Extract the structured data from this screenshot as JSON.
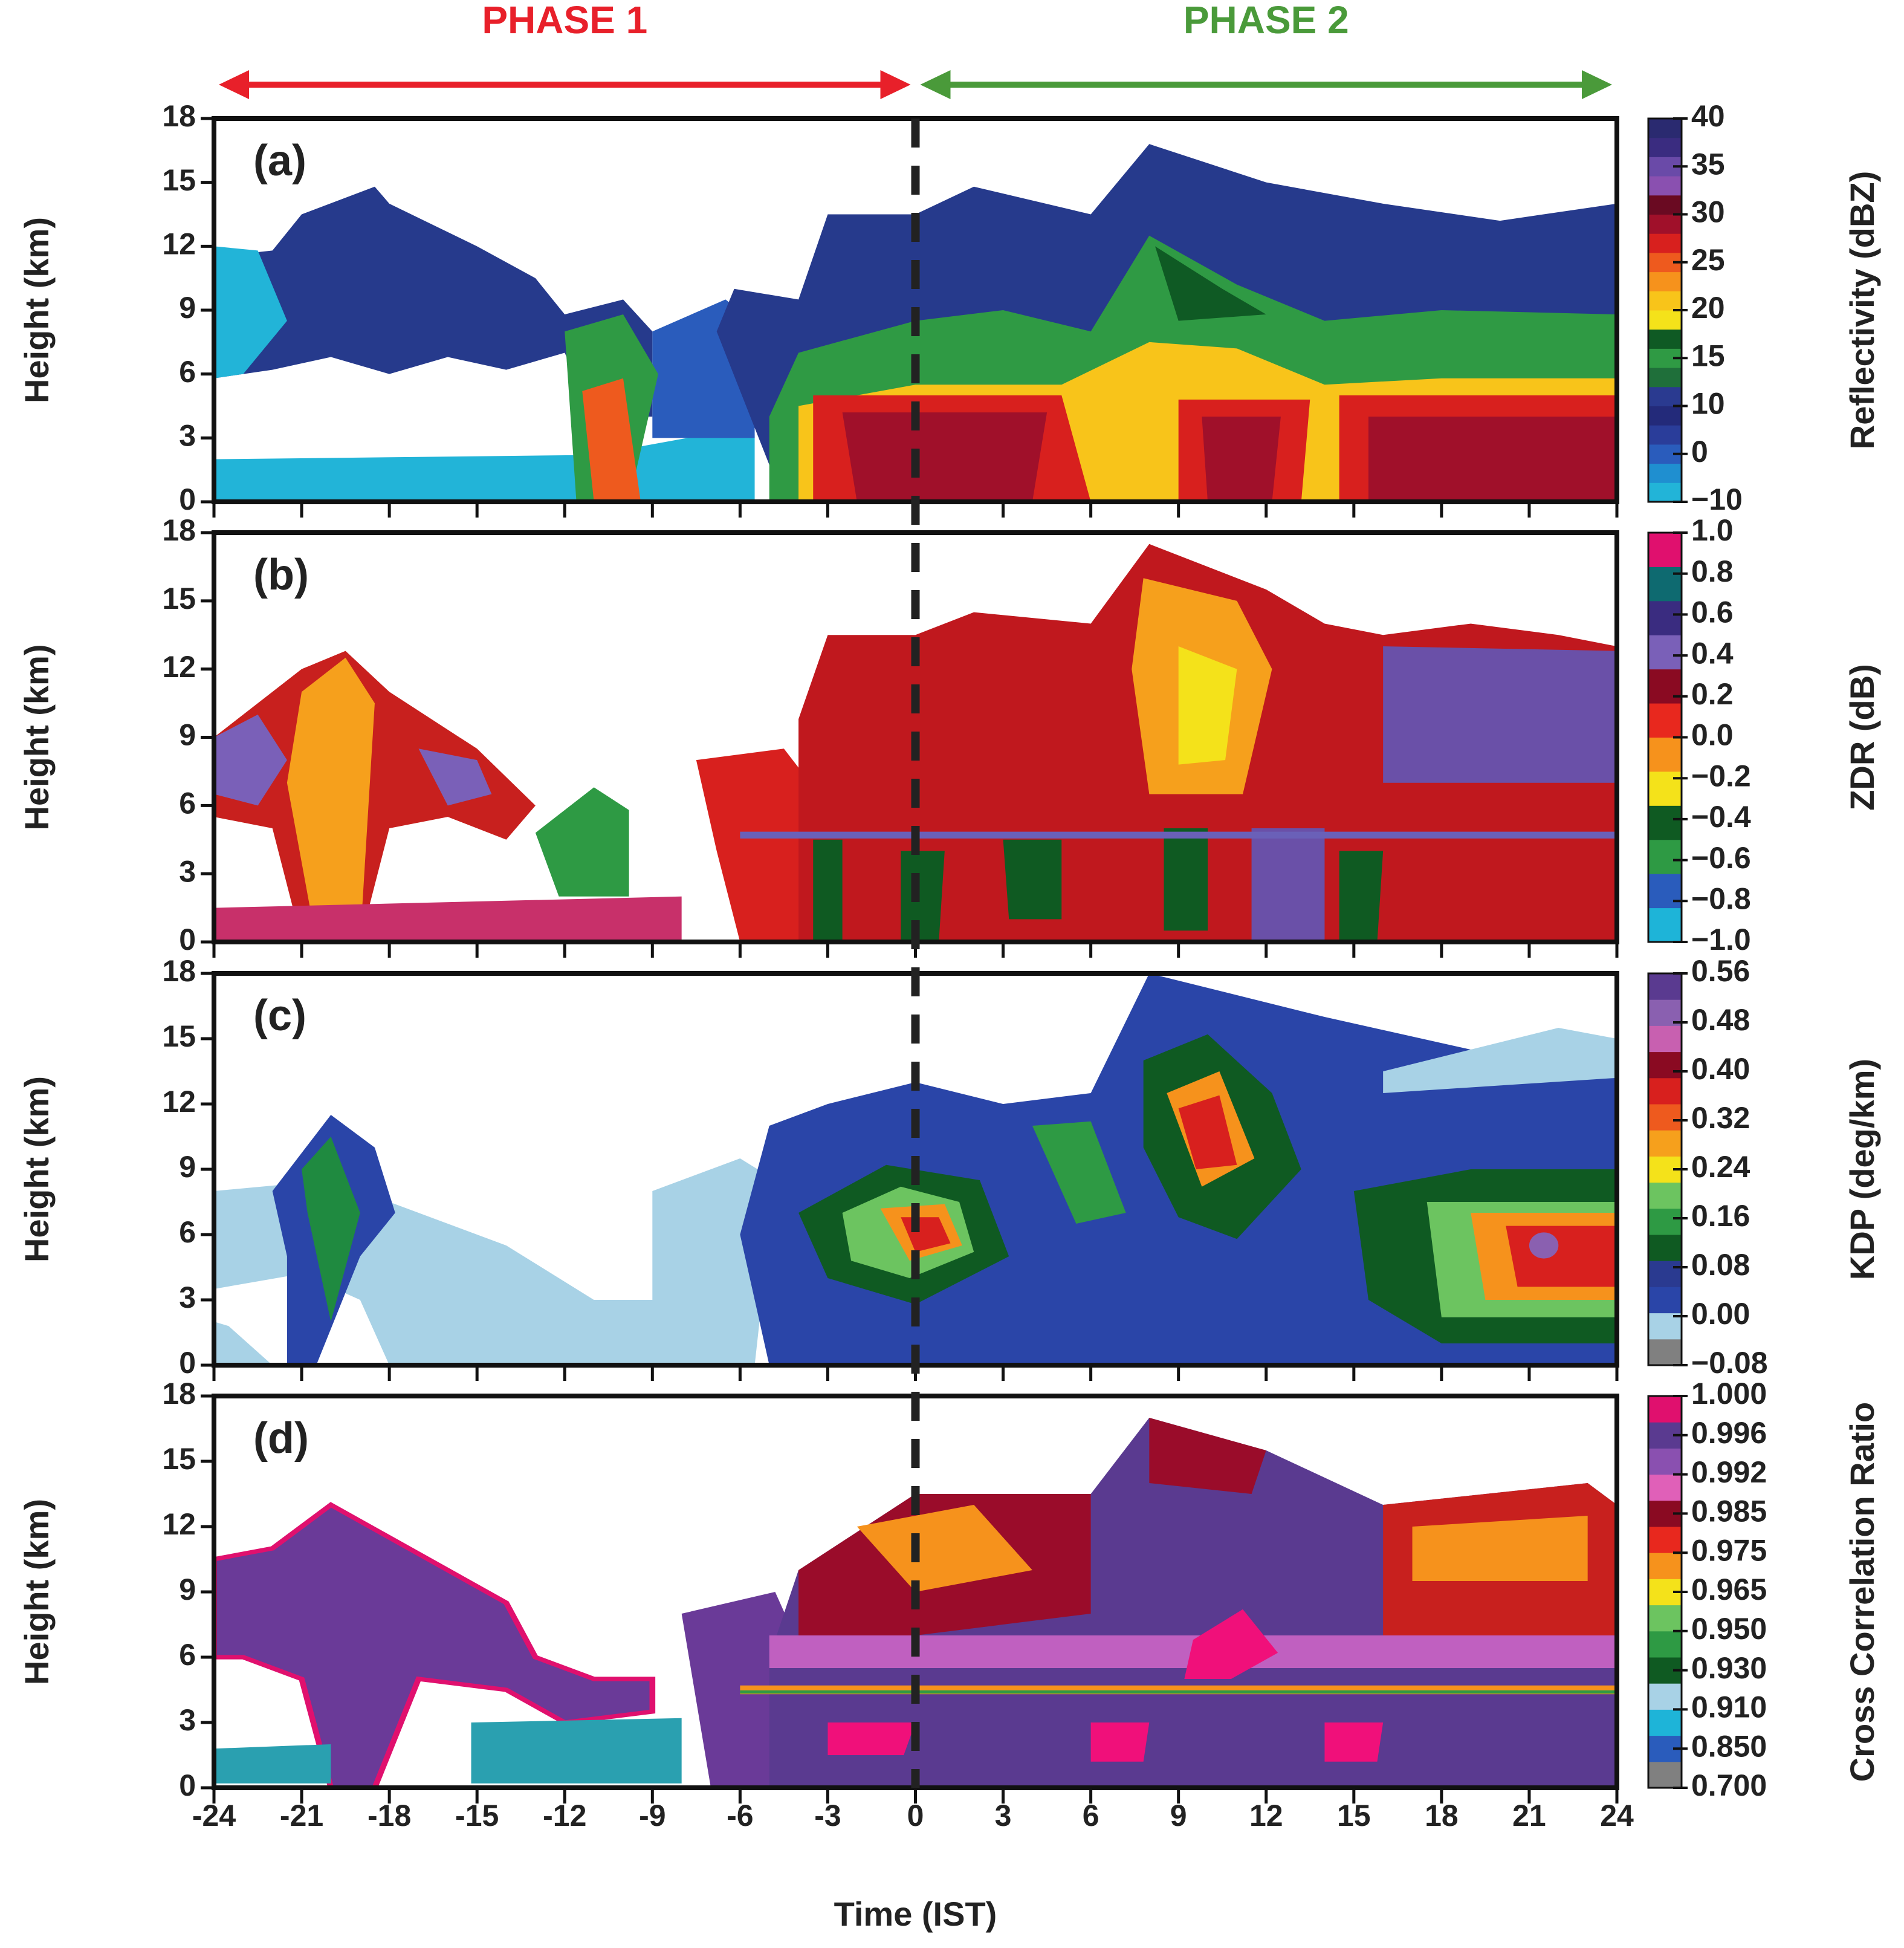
{
  "phases": [
    {
      "label": "PHASE 1",
      "color": "#e8202a",
      "range": [
        -24,
        0
      ]
    },
    {
      "label": "PHASE 2",
      "color": "#4a9a3a",
      "range": [
        0,
        24
      ]
    }
  ],
  "chart_data": [
    {
      "type": "heatmap",
      "panel_label": "(a)",
      "ylabel": "Height (km)",
      "xlim": [
        -24,
        24
      ],
      "xticks": [
        -24,
        -21,
        -18,
        -15,
        -12,
        -9,
        -6,
        -3,
        0,
        3,
        6,
        9,
        12,
        15,
        18,
        21,
        24
      ],
      "ylim": [
        0,
        18
      ],
      "yticks": [
        0,
        3,
        6,
        9,
        12,
        15,
        18
      ],
      "colorbar": {
        "label": "Reflectivity (dBZ)",
        "ticks": [
          {
            "value": -10,
            "label": "−10"
          },
          0,
          10,
          15,
          20,
          25,
          30,
          35,
          40
        ],
        "colors": [
          "#22b4d8",
          "#1f8fd0",
          "#2a5cbc",
          "#2a3d9a",
          "#232a7a",
          "#2a3a90",
          "#1f6f3a",
          "#2f9a44",
          "#0f5a24",
          "#f4e21a",
          "#f8c41a",
          "#f6921c",
          "#ee5a1e",
          "#d8201e",
          "#a0102a",
          "#6a0a22",
          "#8a50b0",
          "#6a4aa8",
          "#3a2c80",
          "#2a2a70"
        ]
      }
    },
    {
      "type": "heatmap",
      "panel_label": "(b)",
      "ylabel": "Height (km)",
      "xlim": [
        -24,
        24
      ],
      "xticks": [
        -24,
        -21,
        -18,
        -15,
        -12,
        -9,
        -6,
        -3,
        0,
        3,
        6,
        9,
        12,
        15,
        18,
        21,
        24
      ],
      "ylim": [
        0,
        18
      ],
      "yticks": [
        0,
        3,
        6,
        9,
        12,
        15,
        18
      ],
      "colorbar": {
        "label": "ZDR (dB)",
        "ticks": [
          {
            "value": -1,
            "label": "−1.0"
          },
          {
            "value": -0.8,
            "label": "−0.8"
          },
          {
            "value": -0.6,
            "label": "−0.6"
          },
          {
            "value": -0.4,
            "label": "−0.4"
          },
          {
            "value": -0.2,
            "label": "−0.2"
          },
          {
            "value": 0,
            "label": "0.0"
          },
          0.2,
          0.4,
          0.6,
          0.8,
          {
            "value": 1,
            "label": "1.0"
          }
        ],
        "colors": [
          "#1eb4d8",
          "#2a5cbc",
          "#2e9a44",
          "#0f5a22",
          "#f4e21a",
          "#f6921c",
          "#e8281e",
          "#8a0a22",
          "#7a60b8",
          "#3a2c80",
          "#0e6a70",
          "#e0106e"
        ]
      }
    },
    {
      "type": "heatmap",
      "panel_label": "(c)",
      "ylabel": "Height (km)",
      "xlim": [
        -24,
        24
      ],
      "xticks": [
        -24,
        -21,
        -18,
        -15,
        -12,
        -9,
        -6,
        -3,
        0,
        3,
        6,
        9,
        12,
        15,
        18,
        21,
        24
      ],
      "ylim": [
        0,
        18
      ],
      "yticks": [
        0,
        3,
        6,
        9,
        12,
        15,
        18
      ],
      "colorbar": {
        "label": "KDP (deg/km)",
        "ticks": [
          {
            "value": -0.08,
            "label": "−0.08"
          },
          {
            "value": 0,
            "label": "0.00"
          },
          {
            "value": 0.08,
            "label": "0.08"
          },
          0.16,
          0.24,
          0.32,
          {
            "value": 0.4,
            "label": "0.40"
          },
          0.48,
          0.56
        ],
        "colors": [
          "#808080",
          "#a8d2e6",
          "#2a45a8",
          "#2a3a90",
          "#0f5a22",
          "#2e9a44",
          "#6cc460",
          "#f4e21a",
          "#f6a01c",
          "#ee5a1e",
          "#d8201e",
          "#8a0a22",
          "#c860b0",
          "#8a60b0",
          "#5a3a90"
        ]
      }
    },
    {
      "type": "heatmap",
      "panel_label": "(d)",
      "ylabel": "Height (km)",
      "xlabel": "Time (IST)",
      "xlim": [
        -24,
        24
      ],
      "xticks": [
        -24,
        -21,
        -18,
        -15,
        -12,
        -9,
        -6,
        -3,
        0,
        3,
        6,
        9,
        12,
        15,
        18,
        21,
        24
      ],
      "ylim": [
        0,
        18
      ],
      "yticks": [
        0,
        3,
        6,
        9,
        12,
        15,
        18
      ],
      "colorbar": {
        "label": "Cross Correlation Ratio",
        "ticks": [
          {
            "value": 0.7,
            "label": "0.700"
          },
          {
            "value": 0.85,
            "label": "0.850"
          },
          {
            "value": 0.91,
            "label": "0.910"
          },
          {
            "value": 0.93,
            "label": "0.930"
          },
          {
            "value": 0.95,
            "label": "0.950"
          },
          0.965,
          0.975,
          0.985,
          0.992,
          0.996,
          {
            "value": 1,
            "label": "1.000"
          }
        ],
        "colors": [
          "#808080",
          "#2a5cbc",
          "#1eb4d8",
          "#a8d2e6",
          "#0f5a22",
          "#2e9a44",
          "#6cc460",
          "#f4e21a",
          "#f6921c",
          "#e8281e",
          "#8a0a22",
          "#e060b8",
          "#8a50b0",
          "#5a3a90",
          "#e0106e"
        ]
      }
    }
  ]
}
